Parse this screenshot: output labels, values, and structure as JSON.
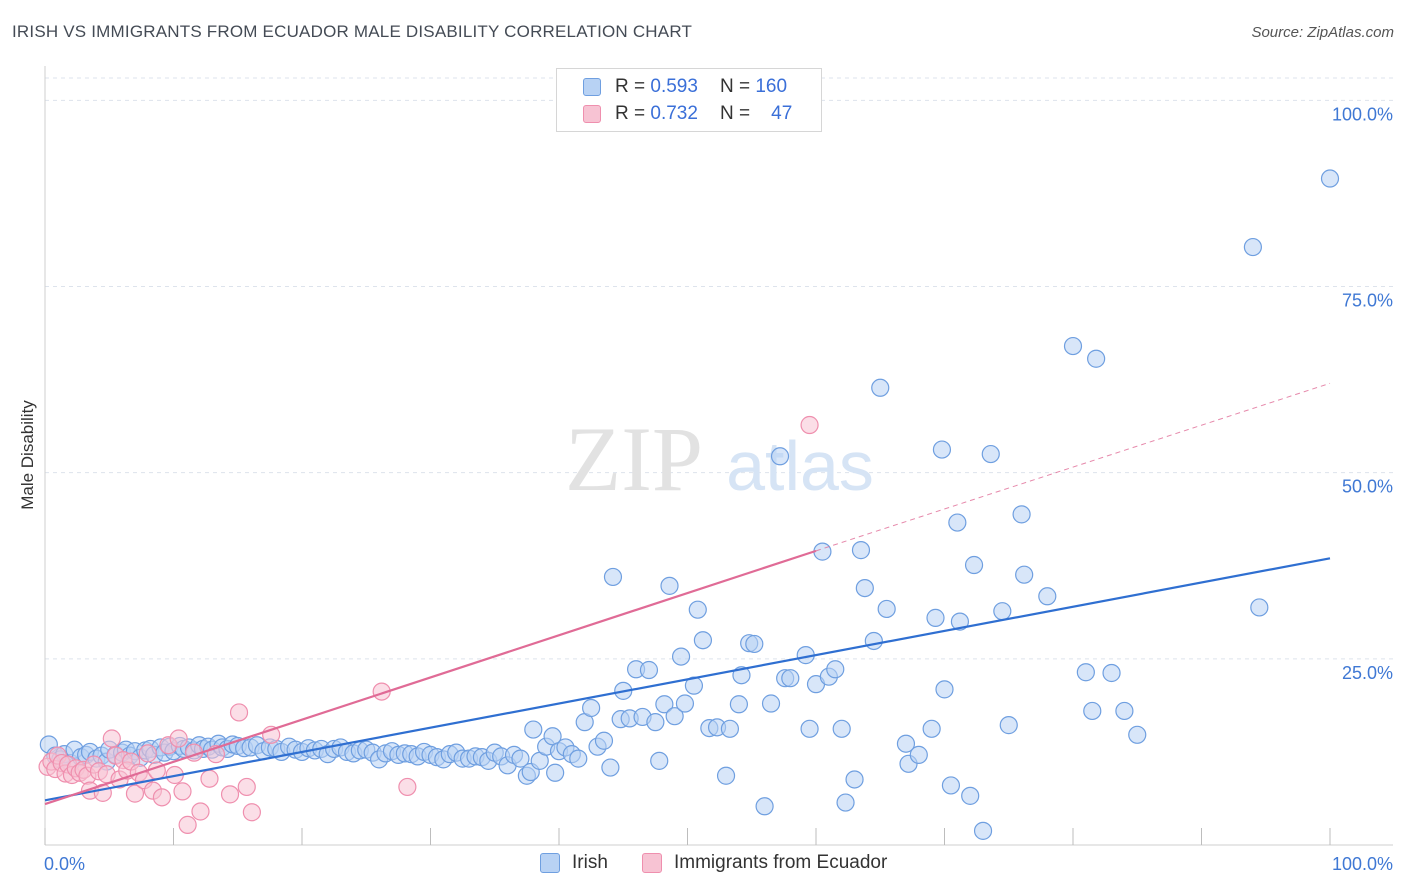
{
  "header": {
    "title": "IRISH VS IMMIGRANTS FROM ECUADOR MALE DISABILITY CORRELATION CHART",
    "source": "Source: ZipAtlas.com"
  },
  "watermark": {
    "zip": "ZIP",
    "atlas": "atlas"
  },
  "colors": {
    "irish_fill": "#b8d2f4",
    "irish_stroke": "#6f9fe0",
    "irish_line": "#2f6fd1",
    "ecuador_fill": "#f7c3d3",
    "ecuador_stroke": "#ef8fae",
    "ecuador_line": "#e06b96",
    "tick_label": "#3f78d4",
    "grid": "#dde3ec"
  },
  "legend": {
    "rows": [
      {
        "r_label": "R =",
        "r_value": "0.593",
        "n_label": "N =",
        "n_value": "160"
      },
      {
        "r_label": "R =",
        "r_value": "0.732",
        "n_label": "N =",
        "n_value": "47"
      }
    ]
  },
  "chart_data": {
    "type": "scatter",
    "title": "IRISH VS IMMIGRANTS FROM ECUADOR MALE DISABILITY CORRELATION CHART",
    "xlabel": "",
    "ylabel": "Male Disability",
    "xlim": [
      0,
      100
    ],
    "ylim": [
      0,
      103
    ],
    "x_tick_labels": [
      {
        "value": 0,
        "label": "0.0%"
      },
      {
        "value": 100,
        "label": "100.0%"
      }
    ],
    "y_tick_labels": [
      {
        "value": 25,
        "label": "25.0%"
      },
      {
        "value": 50,
        "label": "50.0%"
      },
      {
        "value": 75,
        "label": "75.0%"
      },
      {
        "value": 100,
        "label": "100.0%"
      }
    ],
    "grid": true,
    "series": [
      {
        "name": "Irish",
        "r": 0.593,
        "n": 160,
        "trend": {
          "x": [
            0,
            100
          ],
          "y": [
            6.0,
            38.5
          ]
        },
        "points": [
          [
            0.3,
            13.5
          ],
          [
            0.8,
            12
          ],
          [
            1.2,
            11.5
          ],
          [
            1.5,
            12.2
          ],
          [
            2,
            11
          ],
          [
            2.3,
            12.8
          ],
          [
            2.8,
            11.8
          ],
          [
            3.2,
            12.1
          ],
          [
            3.5,
            12.5
          ],
          [
            4,
            11.6
          ],
          [
            4.4,
            12
          ],
          [
            4.8,
            11.2
          ],
          [
            5,
            12.8
          ],
          [
            5.5,
            12.1
          ],
          [
            6,
            12.4
          ],
          [
            6.3,
            12.8
          ],
          [
            6.6,
            12
          ],
          [
            7,
            12.6
          ],
          [
            7.4,
            11.7
          ],
          [
            7.8,
            12.7
          ],
          [
            8.2,
            12.9
          ],
          [
            8.5,
            12.1
          ],
          [
            9,
            13.1
          ],
          [
            9.3,
            12.4
          ],
          [
            9.7,
            13.2
          ],
          [
            10,
            12.6
          ],
          [
            10.5,
            13.3
          ],
          [
            10.8,
            12.9
          ],
          [
            11.2,
            13.1
          ],
          [
            11.6,
            12.7
          ],
          [
            12,
            13.4
          ],
          [
            12.3,
            12.9
          ],
          [
            12.7,
            13.2
          ],
          [
            13,
            12.8
          ],
          [
            13.5,
            13.6
          ],
          [
            13.8,
            13.1
          ],
          [
            14.2,
            12.9
          ],
          [
            14.6,
            13.5
          ],
          [
            15,
            13.3
          ],
          [
            15.5,
            13
          ],
          [
            16,
            13.1
          ],
          [
            16.5,
            13.4
          ],
          [
            17,
            12.6
          ],
          [
            17.5,
            13.1
          ],
          [
            18,
            12.9
          ],
          [
            18.4,
            12.5
          ],
          [
            19,
            13.2
          ],
          [
            19.5,
            12.8
          ],
          [
            20,
            12.5
          ],
          [
            20.5,
            13
          ],
          [
            21,
            12.7
          ],
          [
            21.5,
            12.9
          ],
          [
            22,
            12.2
          ],
          [
            22.5,
            12.9
          ],
          [
            23,
            13.1
          ],
          [
            23.5,
            12.5
          ],
          [
            24,
            12.3
          ],
          [
            24.5,
            12.7
          ],
          [
            25,
            12.8
          ],
          [
            25.5,
            12.4
          ],
          [
            26,
            11.5
          ],
          [
            26.5,
            12.3
          ],
          [
            27,
            12.6
          ],
          [
            27.5,
            12.1
          ],
          [
            28,
            12.3
          ],
          [
            28.5,
            12.2
          ],
          [
            29,
            11.9
          ],
          [
            29.5,
            12.5
          ],
          [
            30,
            12.1
          ],
          [
            30.5,
            11.8
          ],
          [
            31,
            11.5
          ],
          [
            31.5,
            12.2
          ],
          [
            32,
            12.4
          ],
          [
            32.5,
            11.6
          ],
          [
            33,
            11.6
          ],
          [
            33.5,
            11.9
          ],
          [
            34,
            11.8
          ],
          [
            34.5,
            11.3
          ],
          [
            35,
            12.4
          ],
          [
            35.5,
            11.9
          ],
          [
            36,
            10.7
          ],
          [
            36.5,
            12.1
          ],
          [
            37,
            11.6
          ],
          [
            37.5,
            9.3
          ],
          [
            37.8,
            9.8
          ],
          [
            38,
            15.5
          ],
          [
            38.5,
            11.3
          ],
          [
            39,
            13.2
          ],
          [
            39.5,
            14.6
          ],
          [
            39.7,
            9.7
          ],
          [
            40,
            12.6
          ],
          [
            40.5,
            13.1
          ],
          [
            41,
            12.2
          ],
          [
            41.5,
            11.6
          ],
          [
            42,
            16.5
          ],
          [
            42.5,
            18.4
          ],
          [
            43,
            13.2
          ],
          [
            43.5,
            14.0
          ],
          [
            44,
            10.4
          ],
          [
            44.2,
            36.0
          ],
          [
            44.8,
            16.9
          ],
          [
            45,
            20.7
          ],
          [
            45.5,
            17.0
          ],
          [
            46,
            23.6
          ],
          [
            46.5,
            17.2
          ],
          [
            47,
            23.5
          ],
          [
            47.5,
            16.5
          ],
          [
            47.8,
            11.3
          ],
          [
            48.2,
            18.9
          ],
          [
            48.6,
            34.8
          ],
          [
            49,
            17.3
          ],
          [
            49.5,
            25.3
          ],
          [
            49.8,
            19.0
          ],
          [
            50.5,
            21.4
          ],
          [
            50.8,
            31.6
          ],
          [
            51.2,
            27.5
          ],
          [
            51.7,
            15.7
          ],
          [
            52.3,
            15.8
          ],
          [
            53,
            9.3
          ],
          [
            53.3,
            15.6
          ],
          [
            54,
            18.9
          ],
          [
            54.2,
            22.8
          ],
          [
            54.8,
            27.1
          ],
          [
            55.2,
            27.0
          ],
          [
            56,
            5.2
          ],
          [
            56.5,
            19.0
          ],
          [
            57.2,
            52.2
          ],
          [
            57.6,
            22.4
          ],
          [
            58,
            22.4
          ],
          [
            59.2,
            25.5
          ],
          [
            59.5,
            15.6
          ],
          [
            60,
            21.6
          ],
          [
            60.5,
            39.4
          ],
          [
            61,
            22.6
          ],
          [
            61.5,
            23.6
          ],
          [
            62,
            15.6
          ],
          [
            62.3,
            5.7
          ],
          [
            63,
            8.8
          ],
          [
            63.5,
            39.6
          ],
          [
            63.8,
            34.5
          ],
          [
            64.5,
            27.4
          ],
          [
            65,
            61.4
          ],
          [
            65.5,
            31.7
          ],
          [
            67,
            13.6
          ],
          [
            67.2,
            10.9
          ],
          [
            68,
            12.1
          ],
          [
            69,
            15.6
          ],
          [
            69.3,
            30.5
          ],
          [
            69.8,
            53.1
          ],
          [
            70,
            20.9
          ],
          [
            70.5,
            8.0
          ],
          [
            71,
            43.3
          ],
          [
            71.2,
            30.0
          ],
          [
            72,
            6.6
          ],
          [
            72.3,
            37.6
          ],
          [
            73,
            1.9
          ],
          [
            73.6,
            52.5
          ],
          [
            74.5,
            31.4
          ],
          [
            75,
            16.1
          ],
          [
            76,
            44.4
          ],
          [
            76.2,
            36.3
          ],
          [
            78,
            33.4
          ],
          [
            80,
            67.0
          ],
          [
            81,
            23.2
          ],
          [
            81.5,
            18.0
          ],
          [
            81.8,
            65.3
          ],
          [
            83,
            23.1
          ],
          [
            84,
            18.0
          ],
          [
            85,
            14.8
          ],
          [
            94,
            80.3
          ],
          [
            94.5,
            31.9
          ],
          [
            100,
            89.5
          ]
        ]
      },
      {
        "name": "Immigrants from Ecuador",
        "r": 0.732,
        "n": 47,
        "trend": {
          "x": [
            0,
            60
          ],
          "y": [
            5.5,
            39.5
          ]
        },
        "trend_extension": {
          "x": [
            60,
            100
          ],
          "y": [
            39.5,
            62.0
          ]
        },
        "points": [
          [
            0.2,
            10.5
          ],
          [
            0.5,
            11.2
          ],
          [
            0.8,
            10.2
          ],
          [
            1.0,
            12.0
          ],
          [
            1.3,
            11.0
          ],
          [
            1.6,
            9.6
          ],
          [
            1.8,
            10.8
          ],
          [
            2.1,
            9.4
          ],
          [
            2.4,
            10.3
          ],
          [
            2.7,
            9.7
          ],
          [
            3.0,
            10.1
          ],
          [
            3.3,
            9.3
          ],
          [
            3.5,
            7.3
          ],
          [
            3.8,
            10.8
          ],
          [
            4.2,
            9.9
          ],
          [
            4.5,
            7.0
          ],
          [
            4.8,
            9.5
          ],
          [
            5.2,
            14.3
          ],
          [
            5.5,
            12.0
          ],
          [
            5.8,
            8.8
          ],
          [
            6.1,
            11.4
          ],
          [
            6.4,
            10.0
          ],
          [
            6.7,
            11.2
          ],
          [
            7.0,
            6.9
          ],
          [
            7.3,
            9.7
          ],
          [
            7.7,
            8.7
          ],
          [
            8.0,
            12.3
          ],
          [
            8.4,
            7.3
          ],
          [
            8.7,
            10.0
          ],
          [
            9.1,
            6.4
          ],
          [
            9.6,
            13.4
          ],
          [
            10.1,
            9.4
          ],
          [
            10.4,
            14.3
          ],
          [
            10.7,
            7.2
          ],
          [
            11.1,
            2.7
          ],
          [
            11.6,
            12.4
          ],
          [
            12.1,
            4.5
          ],
          [
            12.8,
            8.9
          ],
          [
            13.3,
            12.2
          ],
          [
            14.4,
            6.8
          ],
          [
            15.1,
            17.8
          ],
          [
            15.7,
            7.8
          ],
          [
            16.1,
            4.4
          ],
          [
            17.6,
            14.8
          ],
          [
            26.2,
            20.6
          ],
          [
            28.2,
            7.8
          ],
          [
            59.5,
            56.4
          ]
        ]
      }
    ]
  }
}
